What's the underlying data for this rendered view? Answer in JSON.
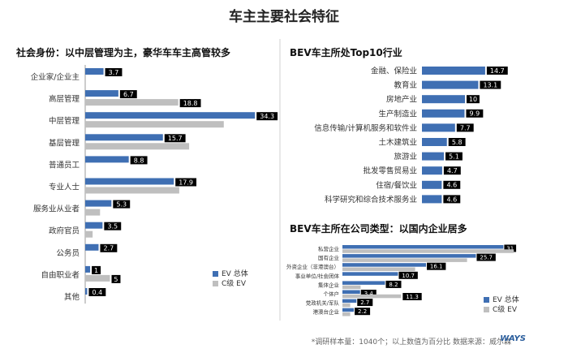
{
  "page": {
    "title": "车主主要社会特征",
    "footnote": "*调研样本量：1040个；以上数值为百分比   数据来源：威尔森",
    "logo_text": "WAYS"
  },
  "colors": {
    "ev": "#3f6fb3",
    "cgrade": "#bfbfbf",
    "label_bg": "#000000",
    "label_text": "#ffffff",
    "divider": "#d0d0d0"
  },
  "chart_data": [
    {
      "type": "bar",
      "orientation": "horizontal",
      "title": "社会身份：以中层管理为主，豪华车车主高管较多",
      "categories": [
        "企业家/企业主",
        "高层管理",
        "中层管理",
        "基层管理",
        "普通员工",
        "专业人士",
        "服务业从业者",
        "政府官员",
        "公务员",
        "自由职业者",
        "其他"
      ],
      "series": [
        {
          "name": "EV 总体",
          "values": [
            3.7,
            6.7,
            34.3,
            15.7,
            8.8,
            17.9,
            5.3,
            3.5,
            2.7,
            1.0,
            0.4
          ],
          "labels": [
            "3.7",
            "6.7",
            "34.3",
            "15.7",
            "8.8",
            "17.9",
            "5.3",
            "3.5",
            "2.7",
            "1",
            "0.4"
          ]
        },
        {
          "name": "C级 EV",
          "values": [
            null,
            18.8,
            28.0,
            21.0,
            null,
            19.0,
            3.0,
            1.5,
            null,
            5.0,
            null
          ],
          "labels": [
            "",
            "18.8",
            "",
            "",
            "",
            "",
            "",
            "",
            "",
            "5",
            ""
          ]
        }
      ],
      "legend": {
        "position": "bottom-right",
        "items": [
          "EV 总体",
          "C级 EV"
        ]
      },
      "grid": false
    },
    {
      "type": "bar",
      "orientation": "horizontal",
      "title": "BEV车主所处Top10行业",
      "categories": [
        "金融、保险业",
        "教育业",
        "房地产业",
        "生产制造业",
        "信息传输/计算机服务和软件业",
        "土木建筑业",
        "旅游业",
        "批发零售贸易业",
        "住宿/餐饮业",
        "科学研究和综合技术服务业"
      ],
      "series": [
        {
          "name": "EV 总体",
          "values": [
            14.7,
            13.1,
            10,
            9.9,
            7.7,
            5.8,
            5.1,
            4.7,
            4.6,
            4.6
          ],
          "labels": [
            "14.7",
            "13.1",
            "10",
            "9.9",
            "7.7",
            "5.8",
            "5.1",
            "4.7",
            "4.6",
            "4.6"
          ]
        }
      ],
      "grid": false
    },
    {
      "type": "bar",
      "orientation": "horizontal",
      "title": "BEV车主所在公司类型：以国内企业居多",
      "categories": [
        "私营企业",
        "国有企业",
        "外资企业（非港澳台）",
        "事业单位/社会团体",
        "集体企业",
        "个体户",
        "党政机关/军队",
        "港澳台企业"
      ],
      "series": [
        {
          "name": "EV 总体",
          "values": [
            31,
            25.7,
            16.1,
            10.7,
            8.2,
            3.4,
            2.7,
            2.2
          ],
          "labels": [
            "31",
            "25.7",
            "16.1",
            "10.7",
            "8.2",
            "3.4",
            "2.7",
            "2.2"
          ]
        },
        {
          "name": "C级 EV",
          "values": [
            33,
            24,
            14,
            null,
            3.5,
            11.3,
            1.5,
            1.5
          ],
          "labels": [
            "",
            "",
            "",
            "",
            "",
            "11.3",
            "",
            ""
          ]
        }
      ],
      "legend": {
        "position": "bottom-right",
        "items": [
          "EV 总体",
          "C级 EV"
        ]
      },
      "grid": false
    }
  ]
}
